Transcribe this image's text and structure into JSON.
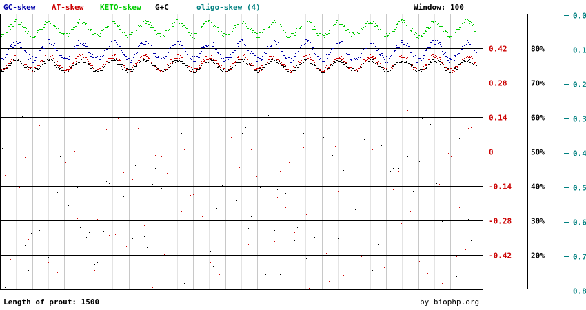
{
  "header": {
    "legend": [
      {
        "name": "GC-skew",
        "color": "#0000aa"
      },
      {
        "name": "AT-skew",
        "color": "#cc0000"
      },
      {
        "name": "KETO-skew",
        "color": "#00cc00"
      },
      {
        "name": "G+C",
        "color": "#000000"
      },
      {
        "name": "oligo-skew (4)",
        "color": "#008080"
      }
    ],
    "window_label": "Window: 100"
  },
  "footer": {
    "length_label": "Length of prout: 1500",
    "credit": "by biophp.org"
  },
  "chart_data": {
    "type": "scatter",
    "title": "",
    "sequence_length": 1500,
    "window": 100,
    "skew_axis": {
      "ticks": [
        "0.42",
        "0.28",
        "0.14",
        "0",
        "-0.14",
        "-0.28",
        "-0.42"
      ],
      "range": [
        -0.56,
        0.56
      ],
      "color": "#cc0000"
    },
    "gc_axis": {
      "ticks": [
        "80%",
        "70%",
        "60%",
        "50%",
        "40%",
        "30%",
        "20%"
      ],
      "range": [
        10,
        90
      ],
      "color": "#000000"
    },
    "oligo_axis": {
      "ticks": [
        "0.0",
        "0.1",
        "0.2",
        "0.3",
        "0.4",
        "0.5",
        "0.6",
        "0.7",
        "0.8"
      ],
      "range": [
        0,
        0.8
      ],
      "color": "#008080"
    },
    "grid": true,
    "series": [
      {
        "name": "KETO-skew",
        "color": "#00cc00",
        "band": [
          0.46,
          0.54
        ]
      },
      {
        "name": "GC-skew",
        "color": "#0000aa",
        "band": [
          0.36,
          0.46
        ]
      },
      {
        "name": "AT-skew",
        "color": "#cc0000",
        "band": [
          0.32,
          0.4
        ]
      },
      {
        "name": "G+C",
        "color": "#000000",
        "band": [
          0.32,
          0.38
        ]
      }
    ]
  }
}
